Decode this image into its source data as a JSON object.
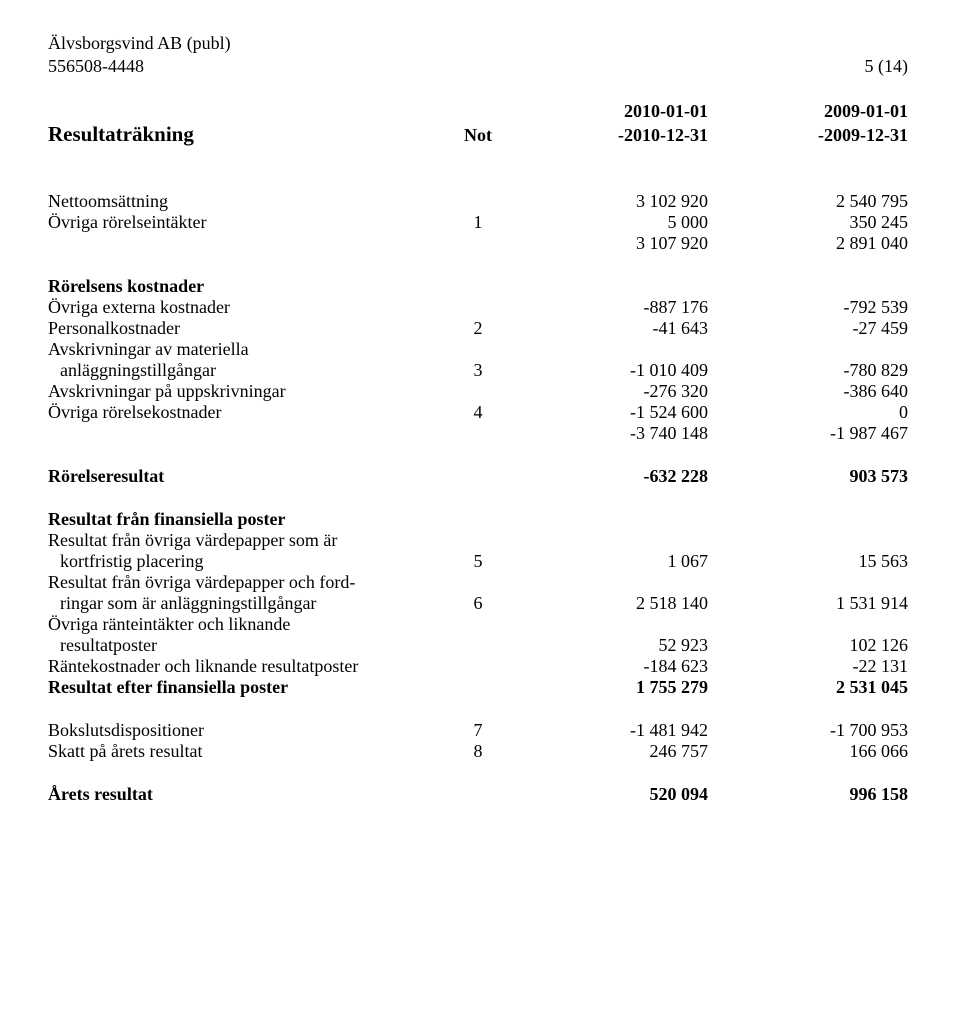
{
  "header": {
    "company": "Älvsborgsvind AB (publ)",
    "orgnr": "556508-4448",
    "page": "5 (14)"
  },
  "columns": {
    "period_cur_from": "2010-01-01",
    "period_prev_from": "2009-01-01",
    "note_label": "Not",
    "period_cur_to": "-2010-12-31",
    "period_prev_to": "-2009-12-31"
  },
  "title": "Resultaträkning",
  "lines": {
    "nettooms": {
      "label": "Nettoomsättning",
      "cur": "3 102 920",
      "prev": "2 540 795"
    },
    "ovr_intakter": {
      "label": "Övriga rörelseintäkter",
      "note": "1",
      "cur": "5 000",
      "prev": "350 245"
    },
    "sum_intakter": {
      "cur": "3 107 920",
      "prev": "2 891 040"
    },
    "rorelsens_kostnader": "Rörelsens kostnader",
    "ext_kostn": {
      "label": "Övriga externa kostnader",
      "cur": "-887 176",
      "prev": "-792 539"
    },
    "personal": {
      "label": "Personalkostnader",
      "note": "2",
      "cur": "-41 643",
      "prev": "-27 459"
    },
    "avskr_mat_1": "Avskrivningar av materiella",
    "avskr_mat_2": {
      "label": "anläggningstillgångar",
      "note": "3",
      "cur": "-1 010 409",
      "prev": "-780 829"
    },
    "avskr_upp": {
      "label": "Avskrivningar på uppskrivningar",
      "cur": "-276 320",
      "prev": "-386 640"
    },
    "ovr_kostn": {
      "label": "Övriga rörelsekostnader",
      "note": "4",
      "cur": "-1 524 600",
      "prev": "0"
    },
    "sum_kostn": {
      "cur": "-3 740 148",
      "prev": "-1 987 467"
    },
    "rorelseresultat": {
      "label": "Rörelseresultat",
      "cur": "-632 228",
      "prev": "903 573"
    },
    "resultat_fin_header": "Resultat från finansiella poster",
    "res_vp_kort_1": "Resultat från övriga värdepapper som är",
    "res_vp_kort_2": {
      "label": "kortfristig placering",
      "note": "5",
      "cur": "1 067",
      "prev": "15 563"
    },
    "res_vp_ford_1": "Resultat från övriga värdepapper och ford-",
    "res_vp_ford_2": {
      "label": "ringar som är anläggningstillgångar",
      "note": "6",
      "cur": "2 518 140",
      "prev": "1 531 914"
    },
    "ovr_rant_1": "Övriga ränteintäkter och liknande",
    "ovr_rant_2": {
      "label": "resultatposter",
      "cur": "52 923",
      "prev": "102 126"
    },
    "rantekostn": {
      "label": "Räntekostnader och liknande resultatposter",
      "cur": "-184 623",
      "prev": "-22 131"
    },
    "res_efter_fin": {
      "label": "Resultat efter finansiella poster",
      "cur": "1 755 279",
      "prev": "2 531 045"
    },
    "bokslutsdisp": {
      "label": "Bokslutsdispositioner",
      "note": "7",
      "cur": "-1 481 942",
      "prev": "-1 700 953"
    },
    "skatt": {
      "label": "Skatt på årets resultat",
      "note": "8",
      "cur": "246 757",
      "prev": "166 066"
    },
    "arets_resultat": {
      "label": "Årets resultat",
      "cur": "520 094",
      "prev": "996 158"
    }
  }
}
